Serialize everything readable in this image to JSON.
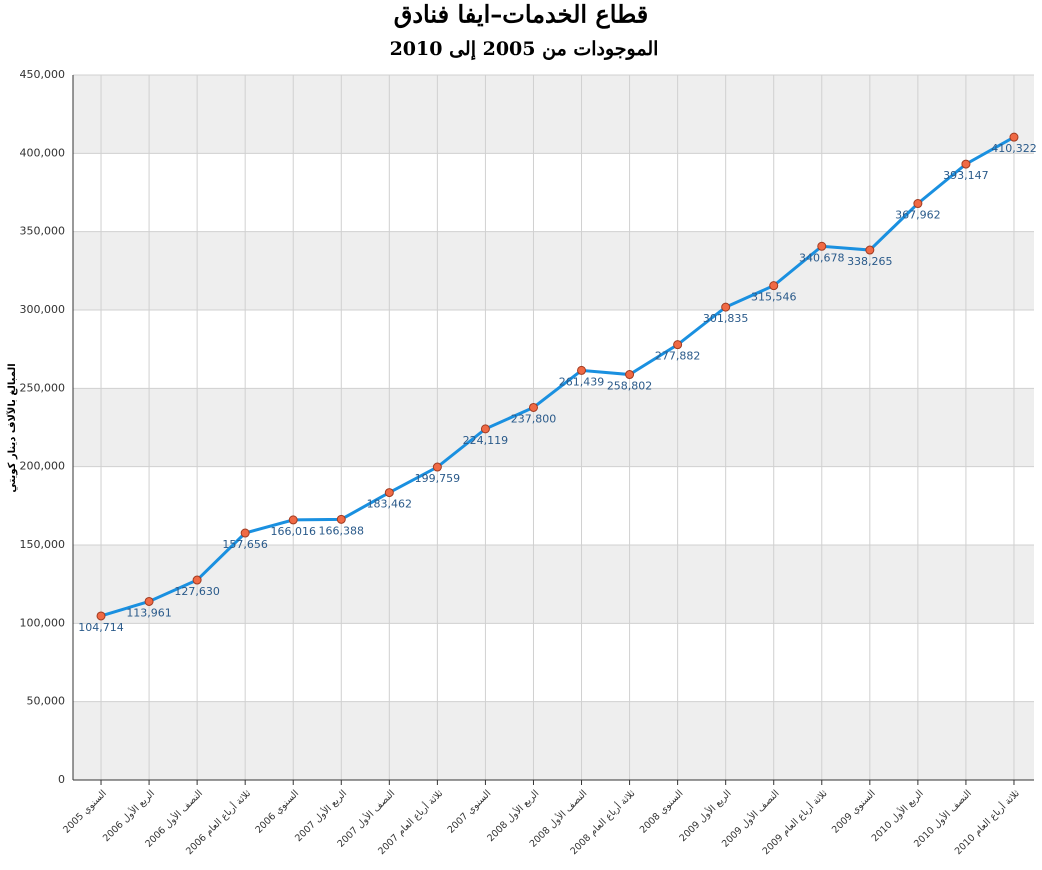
{
  "chart_data": {
    "type": "line",
    "title": "قطاع الخدمات–ايفا فنادق",
    "subtitle": "الموجودات من 2005 إلى 2010",
    "y_label": "المبالغ بالآلاف دينار كويتي",
    "categories": [
      "السنوي 2005",
      "الربع الأول 2006",
      "النصف الأول 2006",
      "ثلاثة أرباع العام 2006",
      "السنوي 2006",
      "الربع الأول 2007",
      "النصف الأول 2007",
      "ثلاثة أرباع العام 2007",
      "السنوي 2007",
      "الربع الأول 2008",
      "النصف الأول 2008",
      "ثلاثة أرباع العام 2008",
      "السنوي 2008",
      "الربع الأول 2009",
      "النصف الأول 2009",
      "ثلاثة أرباع العام 2009",
      "السنوي 2009",
      "الربع الأول 2010",
      "النصف الأول 2010",
      "ثلاثة أرباع العام 2010"
    ],
    "values": [
      104714,
      113961,
      127630,
      157656,
      166016,
      166388,
      183462,
      199759,
      224119,
      237800,
      261439,
      258802,
      277882,
      301835,
      315546,
      340678,
      338265,
      367962,
      393147,
      410322
    ],
    "value_labels": [
      "104,714",
      "113,961",
      "127,630",
      "157,656",
      "166,016",
      "166,388",
      "183,462",
      "199,759",
      "224,119",
      "237,800",
      "261,439",
      "258,802",
      "277,882",
      "301,835",
      "315,546",
      "340,678",
      "338,265",
      "367,962",
      "393,147",
      "410,322"
    ],
    "color": "#1a90e0",
    "marker_color": "#f06a45",
    "ylim": [
      0,
      450000
    ],
    "yticks": [
      0,
      {
        "value": 50000,
        "label": "50,000"
      },
      {
        "value": 100000,
        "label": "100,000"
      },
      {
        "value": 150000,
        "label": "150,000"
      },
      {
        "value": 200000,
        "label": "200,000"
      },
      {
        "value": 250000,
        "label": "250,000"
      },
      {
        "value": 300000,
        "label": "300,000"
      },
      {
        "value": 350000,
        "label": "350,000"
      },
      {
        "value": 400000,
        "label": "400,000"
      },
      {
        "value": 450000,
        "label": "450,000"
      }
    ],
    "grid": true
  }
}
